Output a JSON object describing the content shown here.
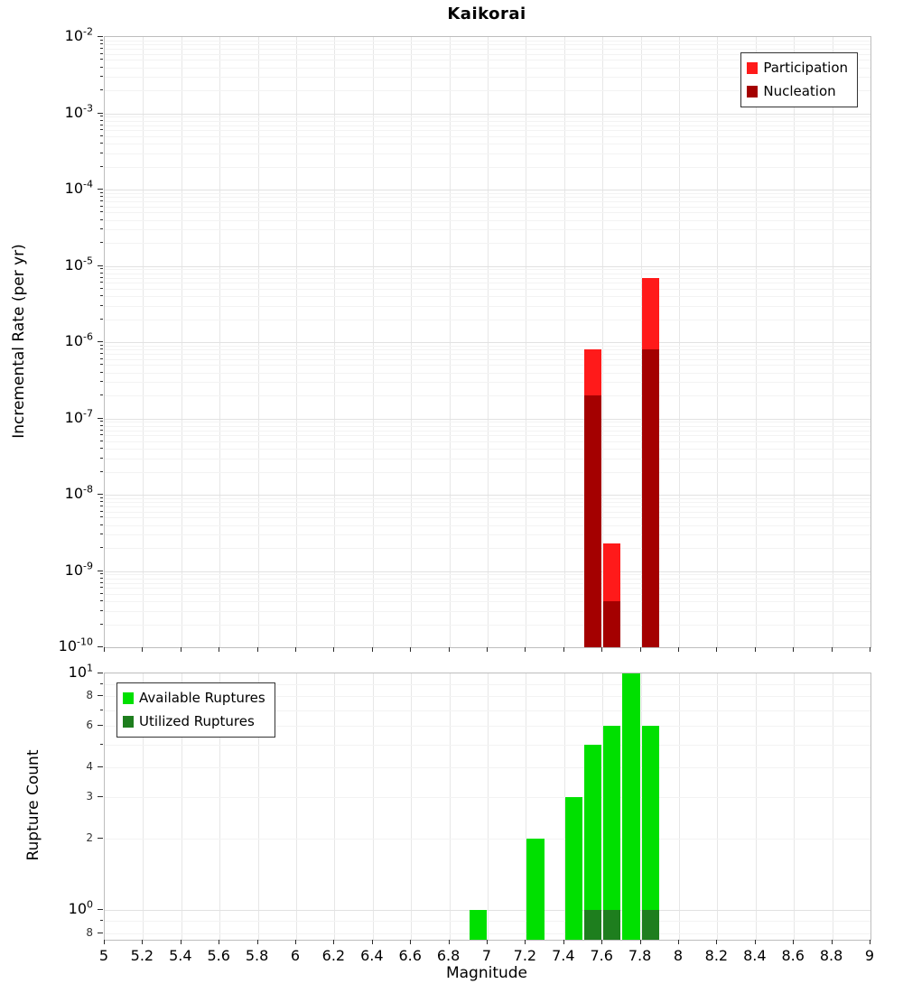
{
  "title": "Kaikorai",
  "chart_data": [
    {
      "type": "bar",
      "title": "Kaikorai",
      "ylabel": "Incremental Rate (per yr)",
      "yscale": "log",
      "ylim": [
        1e-10,
        0.01
      ],
      "xlim": [
        5,
        9
      ],
      "bin_width": 0.1,
      "grid": true,
      "legend_position": "top-right",
      "series": [
        {
          "name": "Participation",
          "color": "#ff1a1a",
          "x": [
            7.55,
            7.65,
            7.85
          ],
          "values": [
            8e-07,
            2.3e-09,
            7e-06
          ]
        },
        {
          "name": "Nucleation",
          "color": "#a40000",
          "x": [
            7.55,
            7.65,
            7.85
          ],
          "values": [
            2e-07,
            4e-10,
            8e-07
          ]
        }
      ],
      "yticks": [
        {
          "v": 0.01,
          "t": "10",
          "s": "-2"
        },
        {
          "v": 0.001,
          "t": "10",
          "s": "-3"
        },
        {
          "v": 0.0001,
          "t": "10",
          "s": "-4"
        },
        {
          "v": 1e-05,
          "t": "10",
          "s": "-5"
        },
        {
          "v": 1e-06,
          "t": "10",
          "s": "-6"
        },
        {
          "v": 1e-07,
          "t": "10",
          "s": "-7"
        },
        {
          "v": 1e-08,
          "t": "10",
          "s": "-8"
        },
        {
          "v": 1e-09,
          "t": "10",
          "s": "-9"
        },
        {
          "v": 1e-10,
          "t": "10",
          "s": "-10"
        }
      ],
      "xticks": [
        5,
        5.2,
        5.4,
        5.6,
        5.8,
        6,
        6.2,
        6.4,
        6.6,
        6.8,
        7,
        7.2,
        7.4,
        7.6,
        7.8,
        8,
        8.2,
        8.4,
        8.6,
        8.8,
        9
      ],
      "xtick_labels": [
        "5",
        "5.2",
        "5.4",
        "5.6",
        "5.8",
        "6",
        "6.2",
        "6.4",
        "6.6",
        "6.8",
        "7",
        "7.2",
        "7.4",
        "7.6",
        "7.8",
        "8",
        "8.2",
        "8.4",
        "8.6",
        "8.8",
        "9"
      ]
    },
    {
      "type": "bar",
      "ylabel": "Rupture Count",
      "xlabel": "Magnitude",
      "yscale": "log",
      "ylim": [
        0.75,
        10
      ],
      "xlim": [
        5,
        9
      ],
      "bin_width": 0.1,
      "grid": true,
      "legend_position": "top-left",
      "series": [
        {
          "name": "Available Ruptures",
          "color": "#00e000",
          "x": [
            6.95,
            7.25,
            7.45,
            7.55,
            7.65,
            7.75,
            7.85
          ],
          "values": [
            1,
            2,
            3,
            5,
            6,
            10,
            6
          ]
        },
        {
          "name": "Utilized Ruptures",
          "color": "#1e7e1e",
          "x": [
            7.55,
            7.65,
            7.85
          ],
          "values": [
            1,
            1,
            1
          ]
        }
      ],
      "yticks": [
        {
          "v": 10,
          "t": "10",
          "s": "1"
        },
        {
          "v": 8,
          "t": "8"
        },
        {
          "v": 6,
          "t": "6"
        },
        {
          "v": 4,
          "t": "4"
        },
        {
          "v": 3,
          "t": "3"
        },
        {
          "v": 2,
          "t": "2"
        },
        {
          "v": 1,
          "t": "10",
          "s": "0"
        },
        {
          "v": 0.8,
          "t": "8"
        }
      ],
      "xticks": [
        5,
        5.2,
        5.4,
        5.6,
        5.8,
        6,
        6.2,
        6.4,
        6.6,
        6.8,
        7,
        7.2,
        7.4,
        7.6,
        7.8,
        8,
        8.2,
        8.4,
        8.6,
        8.8,
        9
      ],
      "xtick_labels": [
        "5",
        "5.2",
        "5.4",
        "5.6",
        "5.8",
        "6",
        "6.2",
        "6.4",
        "6.6",
        "6.8",
        "7",
        "7.2",
        "7.4",
        "7.6",
        "7.8",
        "8",
        "8.2",
        "8.4",
        "8.6",
        "8.8",
        "9"
      ]
    }
  ]
}
